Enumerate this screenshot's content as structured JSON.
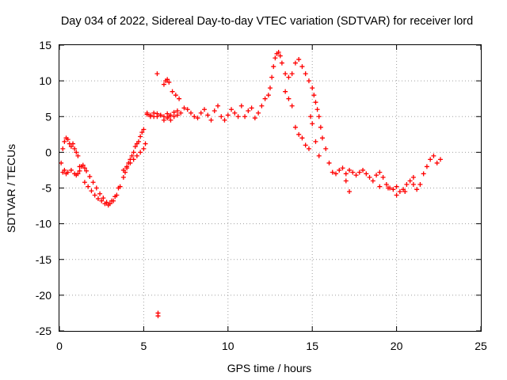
{
  "chart_data": {
    "type": "scatter",
    "title": "Day 034 of 2022, Sidereal Day-to-day VTEC variation (SDTVAR) for receiver lord",
    "xlabel": "GPS time / hours",
    "ylabel": "SDTVAR / TECUs",
    "xlim": [
      0,
      25
    ],
    "ylim": [
      -25,
      15
    ],
    "xticks": [
      "0",
      "5",
      "10",
      "15",
      "20",
      "25"
    ],
    "yticks": [
      "15",
      "10",
      "5",
      "0",
      "-5",
      "-10",
      "-15",
      "-20",
      "-25"
    ],
    "grid": true,
    "marker": "plus",
    "color": "#ff0000",
    "series": [
      {
        "name": "SDTVAR",
        "x": [
          0.1,
          0.2,
          0.3,
          0.4,
          0.5,
          0.6,
          0.7,
          0.8,
          0.9,
          1.0,
          1.1,
          1.2,
          0.2,
          0.3,
          0.4,
          0.5,
          0.7,
          0.9,
          1.0,
          1.1,
          1.2,
          1.3,
          1.4,
          1.5,
          1.6,
          1.8,
          2.0,
          2.2,
          2.4,
          2.6,
          2.8,
          3.0,
          3.2,
          3.4,
          3.5,
          1.5,
          1.7,
          1.9,
          2.1,
          2.3,
          2.5,
          2.7,
          2.9,
          3.1,
          3.3,
          3.6,
          3.8,
          3.9,
          4.0,
          4.1,
          4.2,
          4.3,
          4.4,
          4.5,
          4.6,
          4.7,
          4.8,
          4.9,
          5.0,
          3.8,
          4.0,
          4.2,
          4.4,
          4.6,
          4.8,
          5.0,
          5.1,
          5.2,
          5.4,
          5.6,
          5.8,
          6.0,
          6.2,
          6.4,
          6.6,
          6.8,
          7.0,
          5.2,
          5.4,
          5.6,
          5.8,
          6.0,
          6.2,
          6.4,
          6.5,
          6.6,
          6.8,
          7.0,
          7.2,
          7.4,
          7.6,
          7.8,
          8.0,
          8.2,
          8.4,
          8.6,
          8.8,
          9.0,
          9.2,
          9.4,
          9.6,
          9.8,
          10.0,
          10.2,
          10.4,
          10.6,
          10.8,
          11.0,
          11.2,
          11.4,
          11.6,
          11.8,
          12.0,
          12.2,
          12.4,
          12.5,
          12.6,
          12.7,
          12.8,
          12.9,
          13.0,
          13.1,
          13.2,
          13.4,
          13.6,
          13.8,
          14.0,
          14.2,
          14.4,
          14.6,
          14.8,
          15.0,
          15.1,
          15.2,
          15.3,
          15.4,
          15.5,
          15.6,
          15.8,
          16.0,
          16.2,
          16.4,
          16.6,
          16.8,
          17.0,
          17.2,
          17.4,
          17.6,
          17.8,
          18.0,
          18.2,
          18.4,
          18.6,
          18.8,
          19.0,
          19.2,
          19.4,
          19.6,
          19.8,
          20.0,
          20.2,
          20.4,
          20.6,
          20.8,
          21.0,
          21.2,
          21.4,
          21.6,
          21.8,
          22.0,
          22.2,
          22.4,
          22.6,
          14.0,
          14.2,
          14.4,
          14.6,
          14.8,
          13.8,
          13.6,
          13.4,
          14.9,
          15.0,
          15.2,
          15.4,
          6.2,
          6.3,
          6.4,
          6.5,
          6.7,
          6.9,
          7.1,
          17.0,
          17.2,
          19.0,
          19.5,
          20.0,
          20.5,
          21.0,
          5.8,
          5.85,
          5.85
        ],
        "y": [
          -1.5,
          0.5,
          1.5,
          2.0,
          1.8,
          1.2,
          0.8,
          1.2,
          0.5,
          0.0,
          -0.5,
          -2.0,
          -2.8,
          -2.5,
          -3.0,
          -2.8,
          -2.5,
          -3.0,
          -3.2,
          -3.0,
          -2.6,
          -2.0,
          -1.8,
          -2.2,
          -2.6,
          -3.4,
          -4.2,
          -5.0,
          -5.8,
          -6.4,
          -7.0,
          -7.2,
          -6.8,
          -6.0,
          -5.0,
          -4.2,
          -4.8,
          -5.4,
          -6.0,
          -6.5,
          -6.8,
          -7.2,
          -7.4,
          -6.8,
          -6.2,
          -4.8,
          -3.5,
          -2.8,
          -2.2,
          -1.5,
          -1.0,
          -0.5,
          0.0,
          0.8,
          1.2,
          1.5,
          2.2,
          2.8,
          3.2,
          -2.5,
          -2.0,
          -1.5,
          -1.0,
          -0.5,
          0.0,
          0.5,
          1.2,
          5.5,
          5.2,
          5.0,
          5.4,
          5.2,
          5.0,
          5.4,
          5.2,
          5.6,
          5.8,
          5.3,
          5.0,
          5.5,
          5.0,
          5.2,
          4.5,
          4.8,
          5.0,
          4.5,
          5.0,
          5.2,
          5.5,
          6.2,
          6.0,
          5.5,
          5.0,
          4.8,
          5.5,
          6.0,
          5.2,
          4.5,
          5.8,
          6.5,
          5.0,
          4.5,
          5.2,
          6.0,
          5.5,
          5.0,
          6.5,
          5.0,
          5.8,
          6.2,
          4.8,
          5.5,
          6.5,
          7.5,
          8.0,
          9.0,
          10.5,
          12.0,
          13.2,
          13.8,
          14.0,
          13.5,
          12.5,
          11.0,
          10.5,
          11.0,
          12.5,
          13.0,
          12.0,
          11.0,
          10.0,
          9.0,
          8.0,
          7.0,
          6.0,
          5.0,
          3.5,
          2.0,
          0.5,
          -1.5,
          -2.8,
          -3.0,
          -2.5,
          -2.2,
          -3.0,
          -2.5,
          -2.8,
          -3.2,
          -2.8,
          -2.5,
          -3.0,
          -3.5,
          -4.0,
          -3.2,
          -2.8,
          -3.5,
          -4.5,
          -5.0,
          -5.2,
          -4.8,
          -5.5,
          -5.2,
          -4.5,
          -4.0,
          -3.5,
          -5.2,
          -4.5,
          -3.0,
          -2.0,
          -1.0,
          -0.5,
          -1.5,
          -1.0,
          3.5,
          2.5,
          2.0,
          1.0,
          0.5,
          6.5,
          7.5,
          8.5,
          5.0,
          4.0,
          1.5,
          -0.5,
          9.5,
          10.0,
          10.2,
          9.8,
          8.5,
          8.0,
          7.5,
          -4.0,
          -5.5,
          -4.8,
          -5.0,
          -6.0,
          -5.5,
          -4.5,
          11.0,
          -22.5,
          -22.9
        ]
      }
    ]
  }
}
